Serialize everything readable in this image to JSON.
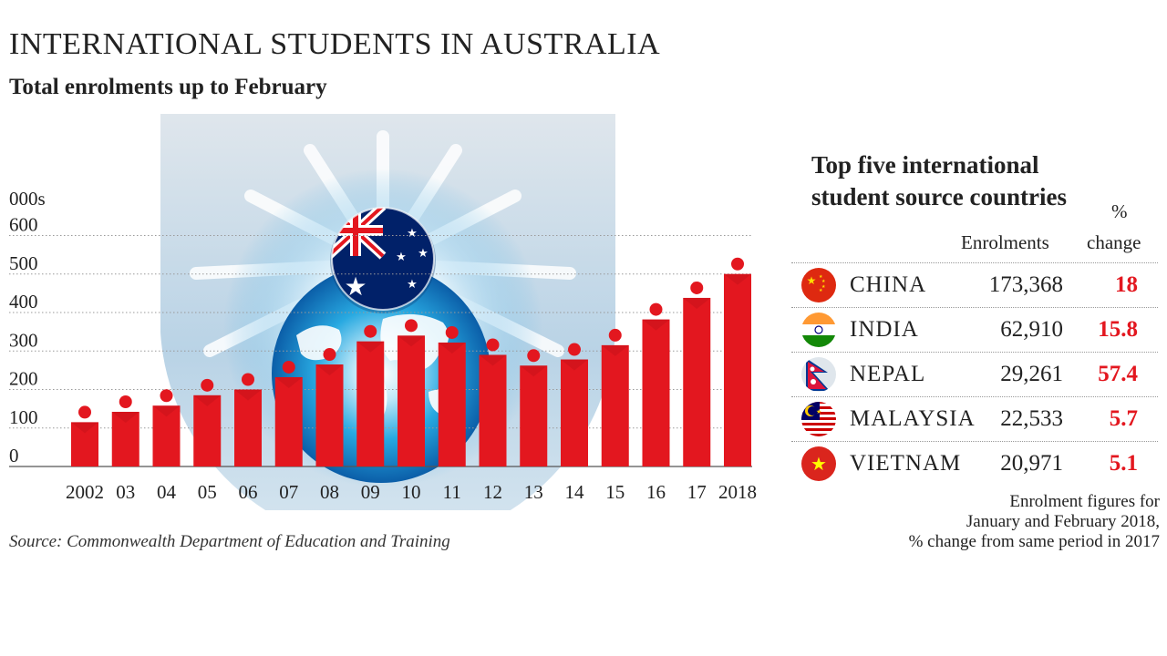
{
  "header": {
    "title": "INTERNATIONAL STUDENTS IN AUSTRALIA",
    "subtitle": "Total enrolments up to February"
  },
  "source": "Source: Commonwealth Department of Education and Training",
  "colors": {
    "bar": "#e3171f",
    "accent": "#e3171f",
    "text": "#222222"
  },
  "chart_data": {
    "type": "bar",
    "ylabel": "000s",
    "ylim": [
      0,
      600
    ],
    "yticks": [
      0,
      100,
      200,
      300,
      400,
      500,
      600
    ],
    "grid": true,
    "categories": [
      "2002",
      "03",
      "04",
      "05",
      "06",
      "07",
      "08",
      "09",
      "10",
      "11",
      "12",
      "13",
      "14",
      "15",
      "16",
      "17",
      "2018"
    ],
    "values": [
      115,
      142,
      158,
      185,
      200,
      232,
      265,
      325,
      340,
      322,
      290,
      262,
      278,
      315,
      382,
      438,
      500
    ],
    "decoration": "australian-flag-globe"
  },
  "table": {
    "title_lines": [
      "Top five international",
      "student source countries"
    ],
    "col_enrolments": "Enrolments",
    "col_pct_line1": "%",
    "col_pct_line2": "change",
    "rows": [
      {
        "country": "CHINA",
        "enrolments": "173,368",
        "pct": "18",
        "flag": "china-flag-icon"
      },
      {
        "country": "INDIA",
        "enrolments": "62,910",
        "pct": "15.8",
        "flag": "india-flag-icon"
      },
      {
        "country": "NEPAL",
        "enrolments": "29,261",
        "pct": "57.4",
        "flag": "nepal-flag-icon"
      },
      {
        "country": "MALAYSIA",
        "enrolments": "22,533",
        "pct": "5.7",
        "flag": "malaysia-flag-icon"
      },
      {
        "country": "VIETNAM",
        "enrolments": "20,971",
        "pct": "5.1",
        "flag": "vietnam-flag-icon"
      }
    ]
  },
  "note_lines": [
    "Enrolment figures for",
    "January and February 2018,",
    "% change from same period in 2017"
  ]
}
